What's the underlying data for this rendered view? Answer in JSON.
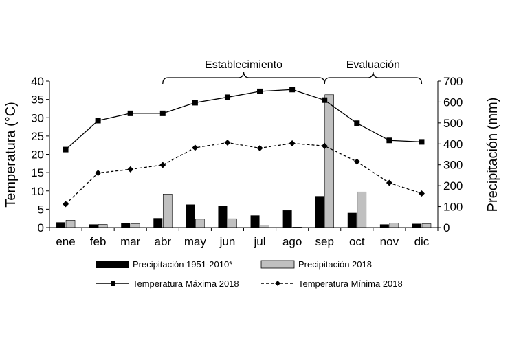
{
  "chart_data": {
    "type": "bar+line",
    "categories": [
      "ene",
      "feb",
      "mar",
      "abr",
      "may",
      "jun",
      "jul",
      "ago",
      "sep",
      "oct",
      "nov",
      "dic"
    ],
    "y_left": {
      "label": "Temperatura (°C)",
      "lim": [
        0,
        40
      ],
      "ticks": [
        0,
        5,
        10,
        15,
        20,
        25,
        30,
        35,
        40
      ]
    },
    "y_right": {
      "label": "Precipitación (mm)",
      "lim": [
        0,
        700
      ],
      "ticks": [
        0,
        100,
        200,
        300,
        400,
        500,
        600,
        700
      ]
    },
    "bar_series": [
      {
        "name": "Precipitación 1951-2010*",
        "color": "#000000",
        "axis": "right",
        "values": [
          25,
          15,
          20,
          45,
          110,
          105,
          58,
          82,
          150,
          70,
          15,
          18
        ]
      },
      {
        "name": "Precipitación 2018",
        "color": "#c0c0c0",
        "axis": "right",
        "values": [
          35,
          15,
          18,
          160,
          40,
          42,
          12,
          2,
          635,
          170,
          22,
          18
        ]
      }
    ],
    "line_series": [
      {
        "name": "Temperatura Máxima 2018",
        "axis": "left",
        "style": "solid",
        "marker": "square",
        "values": [
          21.3,
          29.2,
          31.2,
          31.2,
          34.1,
          35.6,
          37.2,
          37.7,
          34.8,
          28.5,
          23.8,
          23.4
        ]
      },
      {
        "name": "Temperatura Mínima 2018",
        "axis": "left",
        "style": "dashed",
        "marker": "diamond",
        "values": [
          6.4,
          14.9,
          15.9,
          17.1,
          21.8,
          23.2,
          21.7,
          23.0,
          22.3,
          18.0,
          12.2,
          9.3
        ]
      }
    ],
    "periods": [
      {
        "label": "Establecimiento",
        "start_index": 3,
        "end_index": 8
      },
      {
        "label": "Evaluación",
        "start_index": 8,
        "end_index": 11
      }
    ]
  }
}
